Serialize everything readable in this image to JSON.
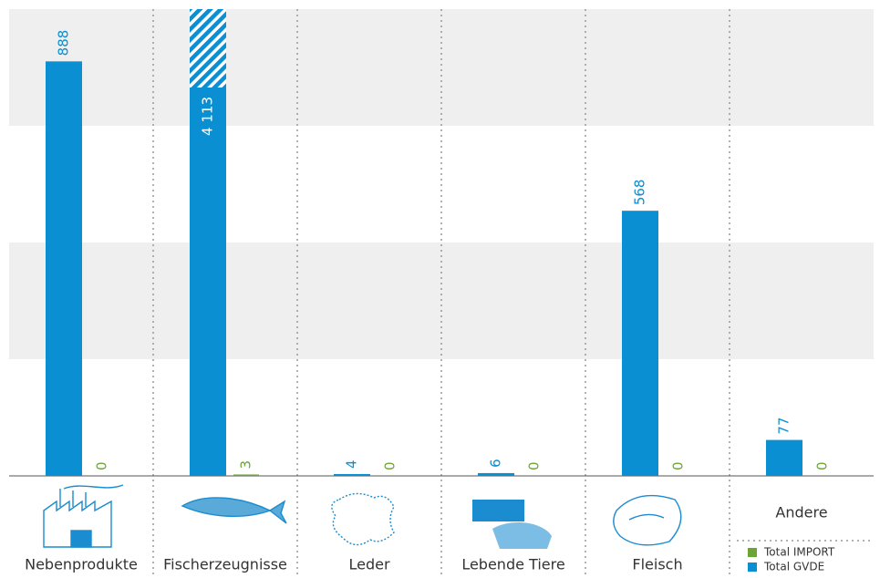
{
  "chart_data": {
    "type": "bar",
    "categories": [
      "Nebenprodukte",
      "Fischerzeugnisse",
      "Leder",
      "Lebende Tiere",
      "Fleisch",
      "Andere"
    ],
    "series": [
      {
        "name": "Total IMPORT",
        "color": "#6aa535",
        "values": [
          0,
          3,
          0,
          0,
          0,
          0
        ]
      },
      {
        "name": "Total GVDE",
        "color": "#0a8fd2",
        "values": [
          888,
          4113,
          4,
          6,
          568,
          77
        ],
        "value_labels": [
          "888",
          "4 113",
          "4",
          "6",
          "568",
          "77"
        ]
      }
    ],
    "ylim": [
      0,
      1000
    ]
  }
}
